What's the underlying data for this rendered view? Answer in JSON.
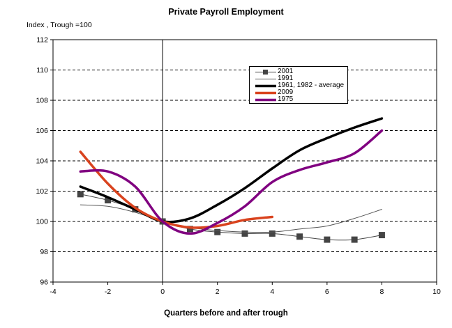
{
  "chart_data": {
    "type": "line",
    "title": "Private Payroll Employment",
    "ylabel": "Index , Trough =100",
    "xlabel": "Quarters before and after trough",
    "xlim": [
      -4,
      10
    ],
    "ylim": [
      96,
      112
    ],
    "x_ticks": [
      "-4",
      "-2",
      "0",
      "2",
      "4",
      "6",
      "8",
      "10"
    ],
    "y_ticks": [
      "96",
      "98",
      "100",
      "102",
      "104",
      "106",
      "108",
      "110",
      "112"
    ],
    "grid": "horizontal dashed",
    "legend_position": "top-center",
    "series": [
      {
        "name": "2001",
        "color": "#444444",
        "style": "thin-square-markers",
        "x": [
          -3,
          -2,
          -1,
          0,
          1,
          2,
          3,
          4,
          5,
          6,
          7,
          8
        ],
        "y": [
          101.8,
          101.4,
          100.8,
          100.0,
          99.5,
          99.3,
          99.2,
          99.2,
          99.0,
          98.8,
          98.8,
          99.1
        ]
      },
      {
        "name": "1991",
        "color": "#555555",
        "style": "thin",
        "x": [
          -3,
          -2,
          -1,
          0,
          1,
          2,
          3,
          4,
          5,
          6,
          7,
          8
        ],
        "y": [
          101.1,
          101.0,
          100.6,
          100.0,
          99.6,
          99.4,
          99.3,
          99.3,
          99.5,
          99.7,
          100.2,
          100.8
        ]
      },
      {
        "name": "1961, 1982 - average",
        "color": "#000000",
        "style": "thick",
        "x": [
          -3,
          -2,
          -1,
          0,
          1,
          2,
          3,
          4,
          5,
          6,
          7,
          8
        ],
        "y": [
          102.3,
          101.6,
          100.8,
          100.0,
          100.2,
          101.1,
          102.2,
          103.5,
          104.7,
          105.5,
          106.2,
          106.8
        ]
      },
      {
        "name": "2009",
        "color": "#d9431e",
        "style": "thick",
        "x": [
          -3,
          -2,
          -1,
          0,
          1,
          2,
          3,
          4
        ],
        "y": [
          104.6,
          102.5,
          100.9,
          100.0,
          99.6,
          99.7,
          100.1,
          100.3
        ]
      },
      {
        "name": "1975",
        "color": "#800080",
        "style": "thick",
        "x": [
          -3,
          -2,
          -1,
          0,
          1,
          2,
          3,
          4,
          5,
          6,
          7,
          8
        ],
        "y": [
          103.3,
          103.3,
          102.3,
          100.0,
          99.2,
          99.9,
          101.0,
          102.6,
          103.4,
          103.9,
          104.5,
          106.0
        ]
      }
    ]
  }
}
